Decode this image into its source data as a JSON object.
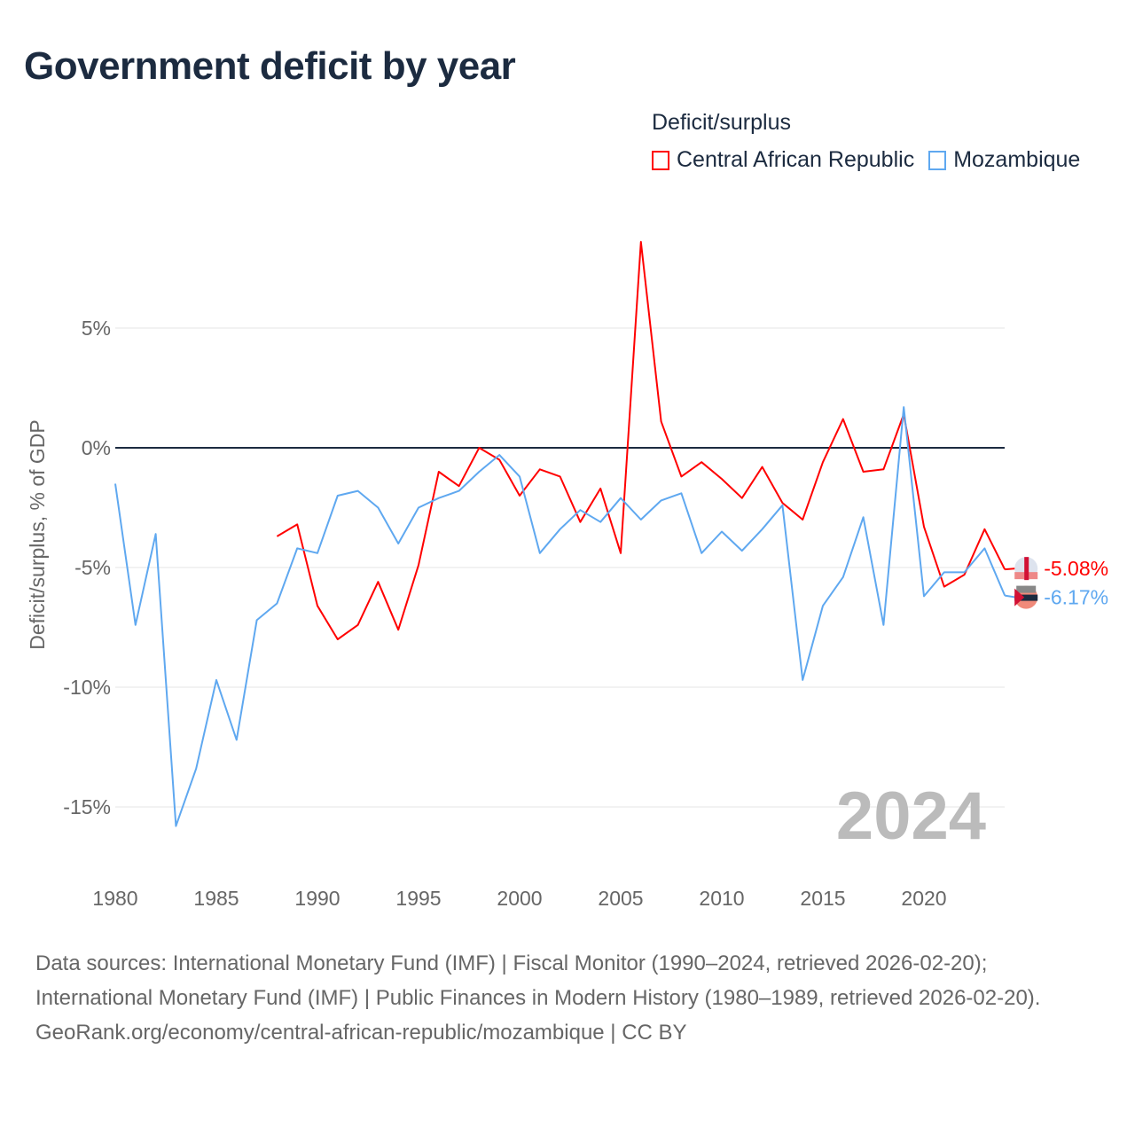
{
  "title": "Government deficit by year",
  "legend": {
    "title": "Deficit/surplus",
    "items": [
      {
        "label": "Central African Republic",
        "color": "#ff0000"
      },
      {
        "label": "Mozambique",
        "color": "#5fa8f0"
      }
    ]
  },
  "chart_data": {
    "type": "line",
    "title": "Government deficit by year",
    "xlabel": "",
    "ylabel": "Deficit/surplus, % of GDP",
    "xlim": [
      1980,
      2024
    ],
    "ylim": [
      -17.5,
      9.5
    ],
    "x_ticks": [
      1980,
      1985,
      1990,
      1995,
      2000,
      2005,
      2010,
      2015,
      2020
    ],
    "y_ticks": [
      5,
      0,
      -5,
      -10,
      -15
    ],
    "y_tick_labels": [
      "5%",
      "0%",
      "-5%",
      "-10%",
      "-15%"
    ],
    "year_label": "2024",
    "series": [
      {
        "name": "Central African Republic",
        "color": "#ff0000",
        "end_label": "-5.08%",
        "x": [
          1988,
          1989,
          1990,
          1991,
          1992,
          1993,
          1994,
          1995,
          1996,
          1997,
          1998,
          1999,
          2000,
          2001,
          2002,
          2003,
          2004,
          2005,
          2006,
          2007,
          2008,
          2009,
          2010,
          2011,
          2012,
          2013,
          2014,
          2015,
          2016,
          2017,
          2018,
          2019,
          2020,
          2021,
          2022,
          2023,
          2024
        ],
        "values": [
          -3.7,
          -3.2,
          -6.6,
          -8.0,
          -7.4,
          -5.6,
          -7.6,
          -4.9,
          -1.0,
          -1.6,
          0.0,
          -0.5,
          -2.0,
          -0.9,
          -1.2,
          -3.1,
          -1.7,
          -4.4,
          8.6,
          1.1,
          -1.2,
          -0.6,
          -1.3,
          -2.1,
          -0.8,
          -2.3,
          -3.0,
          -0.6,
          1.2,
          -1.0,
          -0.9,
          1.4,
          -3.3,
          -5.8,
          -5.3,
          -3.4,
          -5.08
        ]
      },
      {
        "name": "Mozambique",
        "color": "#5fa8f0",
        "end_label": "-6.17%",
        "x": [
          1980,
          1981,
          1982,
          1983,
          1984,
          1985,
          1986,
          1987,
          1988,
          1989,
          1990,
          1991,
          1992,
          1993,
          1994,
          1995,
          1996,
          1997,
          1998,
          1999,
          2000,
          2001,
          2002,
          2003,
          2004,
          2005,
          2006,
          2007,
          2008,
          2009,
          2010,
          2011,
          2012,
          2013,
          2014,
          2015,
          2016,
          2017,
          2018,
          2019,
          2020,
          2021,
          2022,
          2023,
          2024
        ],
        "values": [
          -1.5,
          -7.4,
          -3.6,
          -15.8,
          -13.4,
          -9.7,
          -12.2,
          -7.2,
          -6.5,
          -4.2,
          -4.4,
          -2.0,
          -1.8,
          -2.5,
          -4.0,
          -2.5,
          -2.1,
          -1.8,
          -1.0,
          -0.3,
          -1.2,
          -4.4,
          -3.4,
          -2.6,
          -3.1,
          -2.1,
          -3.0,
          -2.2,
          -1.9,
          -4.4,
          -3.5,
          -4.3,
          -3.4,
          -2.4,
          -9.7,
          -6.6,
          -5.4,
          -2.9,
          -7.4,
          1.7,
          -6.2,
          -5.2,
          -5.2,
          -4.2,
          -6.17
        ]
      }
    ]
  },
  "footer": {
    "sources": "Data sources: International Monetary Fund (IMF) | Fiscal Monitor (1990–2024, retrieved 2026-02-20); International Monetary Fund (IMF) | Public Finances in Modern History (1980–1989, retrieved 2026-02-20).",
    "attribution": "GeoRank.org/economy/central-african-republic/mozambique | CC BY"
  }
}
